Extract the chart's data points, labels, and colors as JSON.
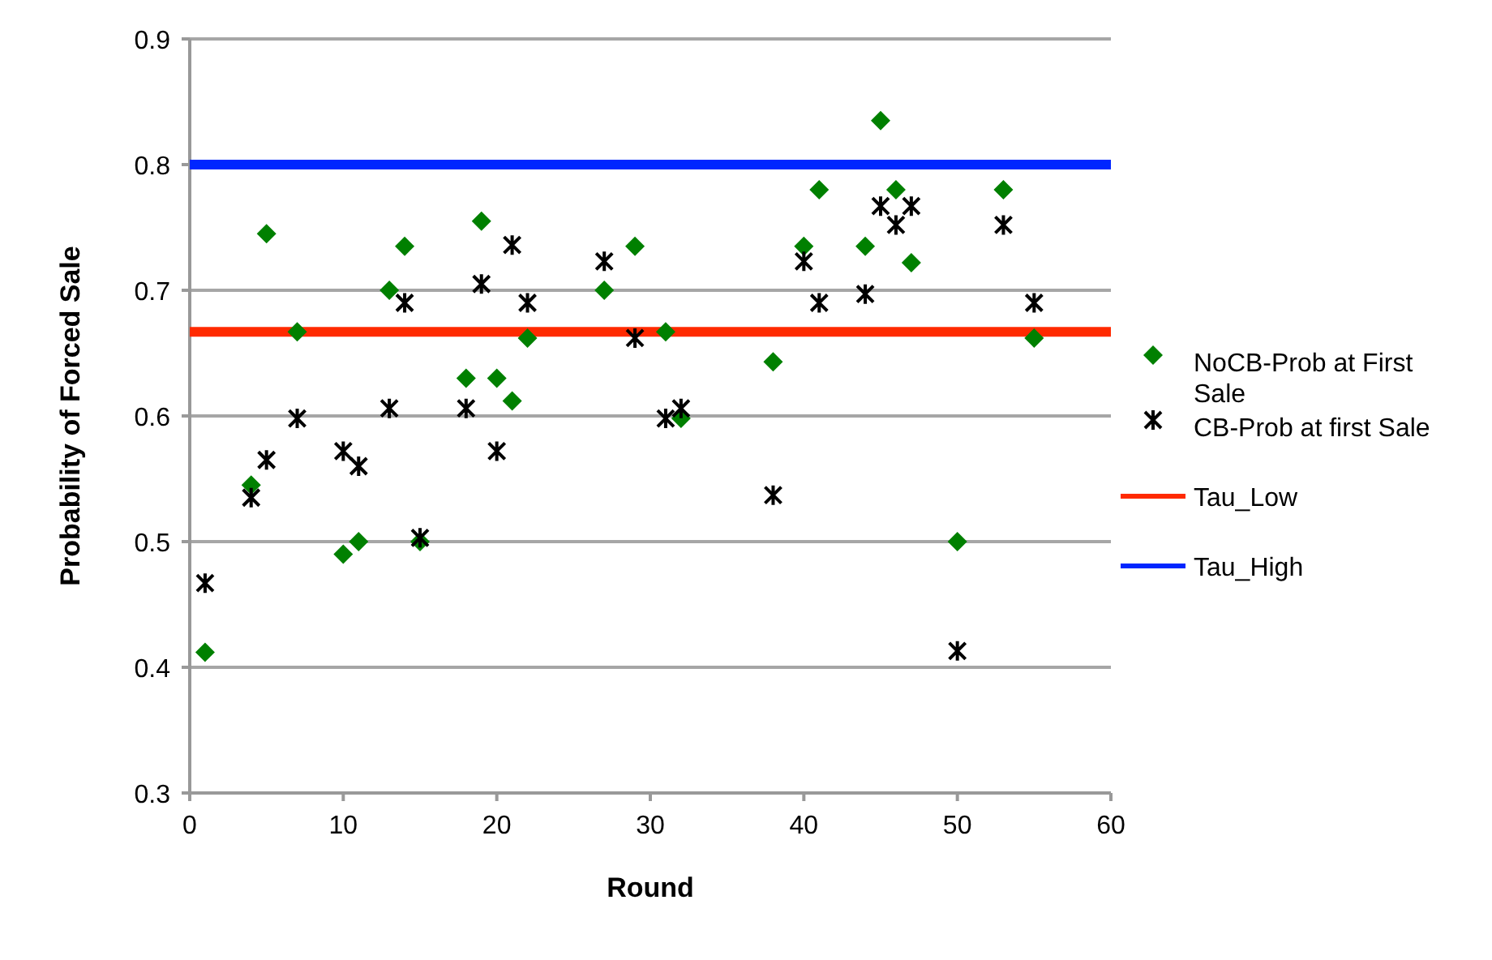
{
  "chart_data": {
    "type": "scatter",
    "xlabel": "Round",
    "ylabel": "Probability of Forced Sale",
    "xlim": [
      0,
      60
    ],
    "xticks": [
      0,
      10,
      20,
      30,
      40,
      50,
      60
    ],
    "ylim": [
      0.3,
      0.9
    ],
    "yticks": [
      0.3,
      0.4,
      0.5,
      0.6,
      0.7,
      0.8,
      0.9
    ],
    "grid": "y",
    "legend": "right",
    "series": [
      {
        "name": "NoCB-Prob at First Sale",
        "marker": "diamond",
        "color": "#008000",
        "x": [
          1,
          4,
          5,
          7,
          10,
          11,
          13,
          14,
          15,
          18,
          19,
          20,
          21,
          22,
          27,
          29,
          31,
          32,
          38,
          40,
          41,
          44,
          45,
          46,
          47,
          50,
          53,
          55
        ],
        "values": [
          0.412,
          0.545,
          0.745,
          0.667,
          0.49,
          0.5,
          0.7,
          0.735,
          0.5,
          0.63,
          0.755,
          0.63,
          0.612,
          0.662,
          0.7,
          0.735,
          0.667,
          0.598,
          0.643,
          0.735,
          0.78,
          0.735,
          0.835,
          0.78,
          0.722,
          0.5,
          0.78,
          0.662
        ]
      },
      {
        "name": "CB-Prob at first Sale",
        "marker": "cross",
        "color": "#000000",
        "x": [
          1,
          4,
          5,
          7,
          10,
          11,
          13,
          14,
          15,
          18,
          19,
          20,
          21,
          22,
          27,
          29,
          31,
          32,
          38,
          40,
          41,
          44,
          45,
          46,
          47,
          50,
          53,
          55
        ],
        "values": [
          0.467,
          0.535,
          0.565,
          0.598,
          0.572,
          0.56,
          0.606,
          0.69,
          0.503,
          0.606,
          0.705,
          0.572,
          0.736,
          0.69,
          0.723,
          0.662,
          0.598,
          0.606,
          0.537,
          0.723,
          0.69,
          0.697,
          0.767,
          0.752,
          0.767,
          0.413,
          0.752,
          0.69
        ]
      },
      {
        "name": "Tau_Low",
        "type": "line",
        "marker": "none",
        "color": "#ff2a00",
        "x": [
          0,
          60
        ],
        "values": [
          0.667,
          0.667
        ]
      },
      {
        "name": "Tau_High",
        "type": "line",
        "marker": "none",
        "color": "#0026ff",
        "x": [
          0,
          60
        ],
        "values": [
          0.8,
          0.8
        ]
      }
    ]
  }
}
